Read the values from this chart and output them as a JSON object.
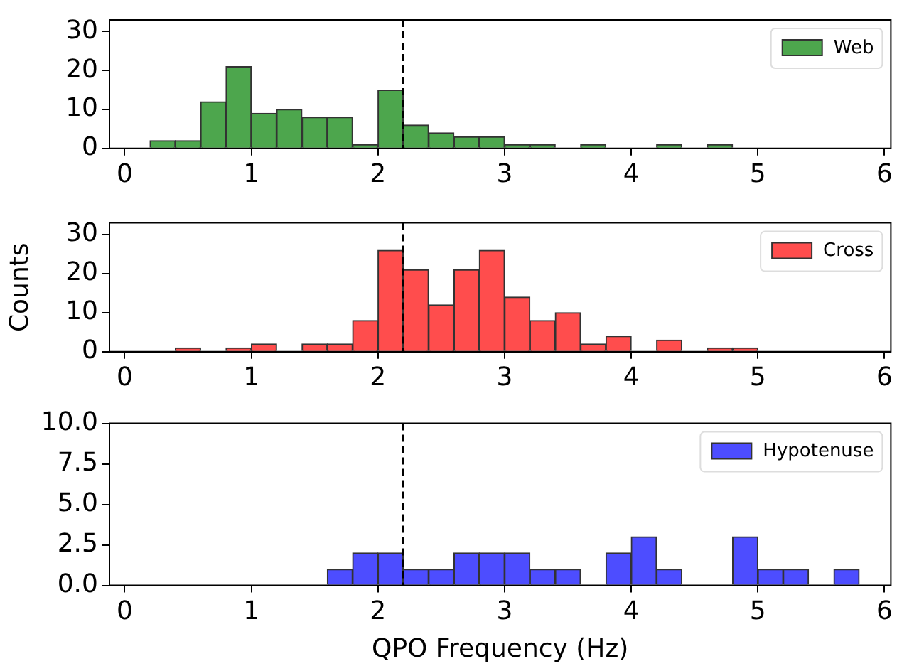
{
  "chart_data": [
    {
      "type": "histogram",
      "bins": [
        0,
        0.2,
        0.4,
        0.6,
        0.8,
        1.0,
        1.2,
        1.4,
        1.6,
        1.8,
        2.0,
        2.2,
        2.4,
        2.6,
        2.8,
        3.0,
        3.2,
        3.4,
        3.6,
        3.8,
        4.0,
        4.2,
        4.4,
        4.6,
        4.8,
        5.0,
        5.2,
        5.4,
        5.6,
        5.8
      ],
      "series": [
        {
          "name": "Web",
          "color": "#4da64d",
          "values": [
            0,
            2,
            2,
            12,
            21,
            9,
            10,
            8,
            8,
            1,
            15,
            6,
            4,
            3,
            3,
            1,
            1,
            0,
            1,
            0,
            0,
            1,
            0,
            1,
            0,
            0,
            0,
            0,
            0
          ]
        }
      ],
      "xlim": [
        -0.12,
        6.05
      ],
      "xticks": [
        0,
        1,
        2,
        3,
        4,
        5,
        6
      ],
      "ylim": [
        0,
        33
      ],
      "yticks": [
        0,
        10,
        20,
        30
      ],
      "ref_lines": [
        {
          "axis": "x",
          "value": 2.2,
          "color": "#000000",
          "line_style": "dashed"
        }
      ],
      "legend": "top right",
      "grid": false
    },
    {
      "type": "histogram",
      "bins": [
        0,
        0.2,
        0.4,
        0.6,
        0.8,
        1.0,
        1.2,
        1.4,
        1.6,
        1.8,
        2.0,
        2.2,
        2.4,
        2.6,
        2.8,
        3.0,
        3.2,
        3.4,
        3.6,
        3.8,
        4.0,
        4.2,
        4.4,
        4.6,
        4.8,
        5.0,
        5.2,
        5.4,
        5.6,
        5.8
      ],
      "series": [
        {
          "name": "Cross",
          "color": "#ff4d4d",
          "values": [
            0,
            0,
            1,
            0,
            1,
            2,
            0,
            2,
            2,
            8,
            26,
            21,
            12,
            21,
            26,
            14,
            8,
            10,
            2,
            4,
            0,
            3,
            0,
            1,
            1,
            0,
            0,
            0,
            0
          ]
        }
      ],
      "ylabel": "Counts",
      "xlim": [
        -0.12,
        6.05
      ],
      "xticks": [
        0,
        1,
        2,
        3,
        4,
        5,
        6
      ],
      "ylim": [
        0,
        33
      ],
      "yticks": [
        0,
        10,
        20,
        30
      ],
      "ref_lines": [
        {
          "axis": "x",
          "value": 2.2,
          "color": "#000000",
          "line_style": "dashed"
        }
      ],
      "legend": "top right",
      "grid": false
    },
    {
      "type": "histogram",
      "bins": [
        0,
        0.2,
        0.4,
        0.6,
        0.8,
        1.0,
        1.2,
        1.4,
        1.6,
        1.8,
        2.0,
        2.2,
        2.4,
        2.6,
        2.8,
        3.0,
        3.2,
        3.4,
        3.6,
        3.8,
        4.0,
        4.2,
        4.4,
        4.6,
        4.8,
        5.0,
        5.2,
        5.4,
        5.6,
        5.8
      ],
      "series": [
        {
          "name": "Hypotenuse",
          "color": "#4d4dff",
          "values": [
            0,
            0,
            0,
            0,
            0,
            0,
            0,
            0,
            1,
            2,
            2,
            1,
            1,
            2,
            2,
            2,
            1,
            1,
            0,
            2,
            3,
            1,
            0,
            0,
            3,
            1,
            1,
            0,
            1
          ]
        }
      ],
      "xlabel": "QPO Frequency (Hz)",
      "xlim": [
        -0.12,
        6.05
      ],
      "xticks": [
        0,
        1,
        2,
        3,
        4,
        5,
        6
      ],
      "ylim": [
        0,
        10
      ],
      "yticks": [
        {
          "value": 0,
          "label": "0.0"
        },
        {
          "value": 2.5,
          "label": "2.5"
        },
        {
          "value": 5,
          "label": "5.0"
        },
        {
          "value": 7.5,
          "label": "7.5"
        },
        {
          "value": 10,
          "label": "10.0"
        }
      ],
      "ref_lines": [
        {
          "axis": "x",
          "value": 2.2,
          "color": "#000000",
          "line_style": "dashed"
        }
      ],
      "legend": "top right",
      "grid": false
    }
  ]
}
